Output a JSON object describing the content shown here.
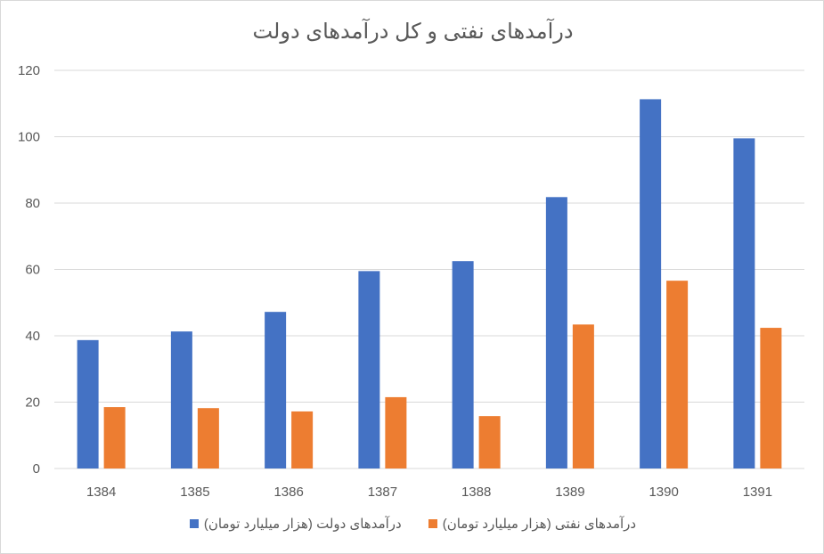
{
  "chart_data": {
    "type": "bar",
    "title": "درآمدهای نفتی و کل درآمدهای دولت",
    "xlabel": "",
    "ylabel": "",
    "categories": [
      "1384",
      "1385",
      "1386",
      "1387",
      "1388",
      "1389",
      "1390",
      "1391"
    ],
    "series": [
      {
        "name": "درآمدهای دولت (هزار میلیارد تومان)",
        "color": "#4472C4",
        "values": [
          38.7,
          41.3,
          47.2,
          59.5,
          62.5,
          81.8,
          111.3,
          99.5
        ]
      },
      {
        "name": "درآمدهای نفتی (هزار میلیارد تومان)",
        "color": "#ED7D31",
        "values": [
          18.5,
          18.2,
          17.2,
          21.5,
          15.8,
          43.4,
          56.6,
          42.4
        ]
      }
    ],
    "ylim": [
      0,
      120
    ],
    "yticks": [
      0,
      20,
      40,
      60,
      80,
      100,
      120
    ],
    "grid": true,
    "legend_position": "bottom"
  },
  "legend": {
    "items": [
      {
        "label": "درآمدهای دولت (هزار میلیارد تومان)",
        "color": "#4472C4"
      },
      {
        "label": "درآمدهای نفتی (هزار میلیارد تومان)",
        "color": "#ED7D31"
      }
    ]
  }
}
